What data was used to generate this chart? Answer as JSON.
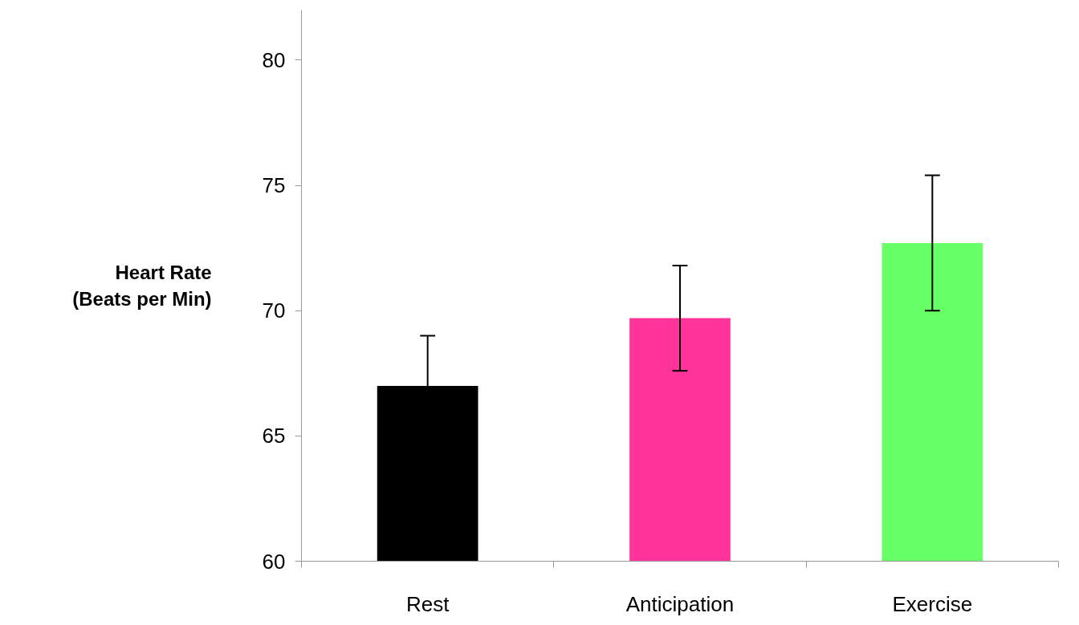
{
  "chart_data": {
    "type": "bar",
    "ylabel": "Heart Rate\n(Beats per Min)",
    "categories": [
      "Rest",
      "Anticipation",
      "Exercise"
    ],
    "values": [
      67.0,
      69.7,
      72.7
    ],
    "colors": [
      "#000000",
      "#ff3399",
      "#66ff66"
    ],
    "errors": [
      2.0,
      2.1,
      2.7
    ],
    "ylim": [
      60,
      82
    ],
    "yticks": [
      60,
      65,
      70,
      75,
      80
    ],
    "grid": false
  }
}
